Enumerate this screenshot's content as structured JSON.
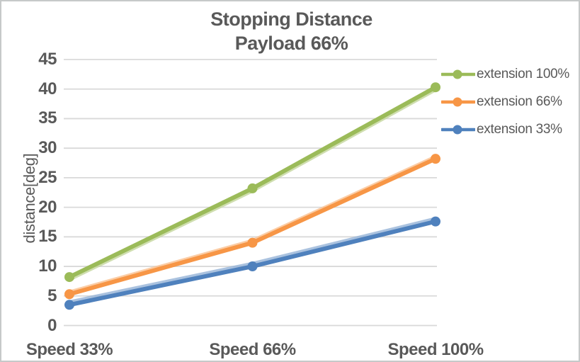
{
  "title": {
    "line1": "Stopping Distance",
    "line2": "Payload 66%"
  },
  "y_axis": {
    "label": "distance[deg]"
  },
  "colors": {
    "text": "#595959",
    "grid": "#d9d9d9",
    "border": "#c6c9c9",
    "background": "#ffffff"
  },
  "chart_data": {
    "type": "line",
    "title": "Stopping Distance Payload 66%",
    "xlabel": "",
    "ylabel": "distance[deg]",
    "categories": [
      "Speed 33%",
      "Speed 66%",
      "Speed 100%"
    ],
    "series": [
      {
        "name": "extension 100%",
        "color": "#9bbb59",
        "halo_color": "#c3d69b",
        "values": [
          8.2,
          23.2,
          40.3
        ]
      },
      {
        "name": "extension 66%",
        "color": "#f79646",
        "halo_color": "#fac090",
        "values": [
          5.3,
          14.0,
          28.2
        ]
      },
      {
        "name": "extension 33%",
        "color": "#4f81bd",
        "halo_color": "#95b3d7",
        "values": [
          3.5,
          10.0,
          17.6
        ]
      }
    ],
    "ylim": [
      0,
      45
    ],
    "yticks": [
      0,
      5,
      10,
      15,
      20,
      25,
      30,
      35,
      40,
      45
    ],
    "grid": true,
    "marker": "circle",
    "legend_position": "right"
  }
}
